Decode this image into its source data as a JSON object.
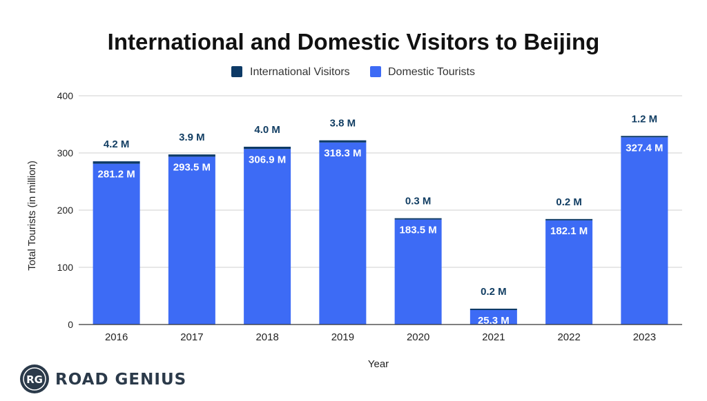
{
  "chart_data": {
    "type": "bar",
    "stacked": true,
    "title": "International and Domestic Visitors to Beijing",
    "xlabel": "Year",
    "ylabel": "Total Tourists (in million)",
    "ylim": [
      0,
      400
    ],
    "yticks": [
      0,
      100,
      200,
      300,
      400
    ],
    "grid": true,
    "legend_position": "top-center",
    "categories": [
      "2016",
      "2017",
      "2018",
      "2019",
      "2020",
      "2021",
      "2022",
      "2023"
    ],
    "series": [
      {
        "name": "Domestic Tourists",
        "color": "#3d6bf5",
        "values": [
          281.2,
          293.5,
          306.9,
          318.3,
          183.5,
          25.3,
          182.1,
          327.4
        ],
        "labels": [
          "281.2 M",
          "293.5 M",
          "306.9 M",
          "318.3 M",
          "183.5 M",
          "25.3 M",
          "182.1 M",
          "327.4 M"
        ]
      },
      {
        "name": "International Visitors",
        "color": "#0d3a66",
        "values": [
          4.2,
          3.9,
          4.0,
          3.8,
          0.3,
          0.2,
          0.2,
          1.2
        ],
        "labels": [
          "4.2 M",
          "3.9 M",
          "4.0 M",
          "3.8 M",
          "0.3 M",
          "0.2 M",
          "0.2 M",
          "1.2 M"
        ]
      }
    ],
    "legend": [
      "International Visitors",
      "Domestic Tourists"
    ]
  },
  "logo": {
    "initials": "RG",
    "name": "ROAD GENIUS"
  },
  "colors": {
    "domestic": "#3d6bf5",
    "international": "#0d3a66",
    "grid": "#cfcfcf",
    "axis": "#333333"
  }
}
